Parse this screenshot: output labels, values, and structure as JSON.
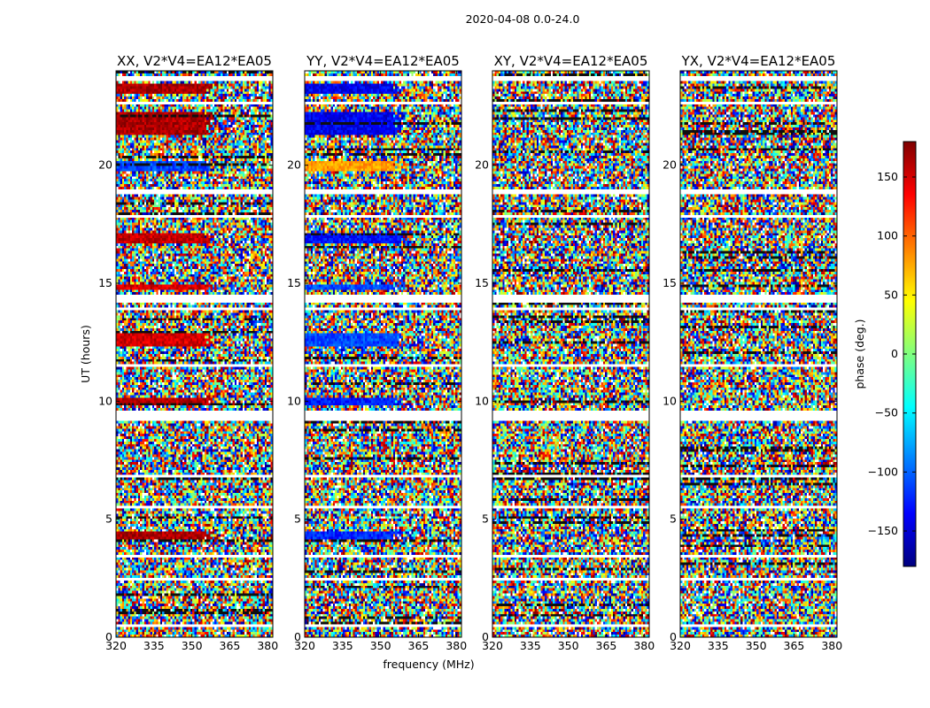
{
  "chart_data": {
    "type": "heatmap",
    "suptitle": "2020-04-08 0.0-24.0",
    "xlabel": "frequency (MHz)",
    "ylabel": "UT (hours)",
    "xlim": [
      320,
      382
    ],
    "ylim": [
      0,
      24
    ],
    "xticks": [
      "320",
      "335",
      "350",
      "365",
      "380"
    ],
    "yticks": [
      "0",
      "5",
      "10",
      "15",
      "20"
    ],
    "colormap": "jet",
    "colorbar": {
      "label": "phase (deg.)",
      "range": [
        -180,
        180
      ],
      "ticks": [
        "−150",
        "−100",
        "−50",
        "0",
        "50",
        "100",
        "150"
      ],
      "tick_values": [
        -150,
        -100,
        -50,
        0,
        50,
        100,
        150
      ]
    },
    "panels": [
      {
        "title": "XX, V2*V4=EA12*EA05",
        "pol": "XX",
        "coherent_phase_deg": 160
      },
      {
        "title": "YY, V2*V4=EA12*EA05",
        "pol": "YY",
        "coherent_phase_deg": -130
      },
      {
        "title": "XY, V2*V4=EA12*EA05",
        "pol": "XY",
        "coherent_phase_deg": null
      },
      {
        "title": "YX, V2*V4=EA12*EA05",
        "pol": "YX",
        "coherent_phase_deg": null
      }
    ],
    "coherent_bands": [
      {
        "ut_start": 4.2,
        "ut_end": 4.5,
        "xx": 165,
        "yy": -120
      },
      {
        "ut_start": 9.8,
        "ut_end": 10.1,
        "xx": 160,
        "yy": -125
      },
      {
        "ut_start": 12.3,
        "ut_end": 12.9,
        "xx": 150,
        "yy": -110
      },
      {
        "ut_start": 14.7,
        "ut_end": 15.0,
        "xx": 150,
        "yy": -110
      },
      {
        "ut_start": 16.7,
        "ut_end": 17.1,
        "xx": 155,
        "yy": -130
      },
      {
        "ut_start": 19.8,
        "ut_end": 20.2,
        "xx": -110,
        "yy": 80
      },
      {
        "ut_start": 21.3,
        "ut_end": 22.3,
        "xx": 165,
        "yy": -140
      },
      {
        "ut_start": 23.0,
        "ut_end": 23.5,
        "xx": 165,
        "yy": -140
      }
    ],
    "flagged_gaps": [
      {
        "ut_start": 0.4,
        "ut_end": 0.6
      },
      {
        "ut_start": 2.4,
        "ut_end": 2.5
      },
      {
        "ut_start": 3.4,
        "ut_end": 3.5
      },
      {
        "ut_start": 5.5,
        "ut_end": 5.6
      },
      {
        "ut_start": 6.8,
        "ut_end": 6.9
      },
      {
        "ut_start": 9.2,
        "ut_end": 9.6
      },
      {
        "ut_start": 11.5,
        "ut_end": 11.6
      },
      {
        "ut_start": 13.9,
        "ut_end": 14.0
      },
      {
        "ut_start": 14.2,
        "ut_end": 14.5
      },
      {
        "ut_start": 17.8,
        "ut_end": 17.9
      },
      {
        "ut_start": 18.8,
        "ut_end": 19.0
      },
      {
        "ut_start": 20.9,
        "ut_end": 21.0
      },
      {
        "ut_start": 22.6,
        "ut_end": 22.7
      },
      {
        "ut_start": 23.6,
        "ut_end": 23.8
      }
    ]
  }
}
